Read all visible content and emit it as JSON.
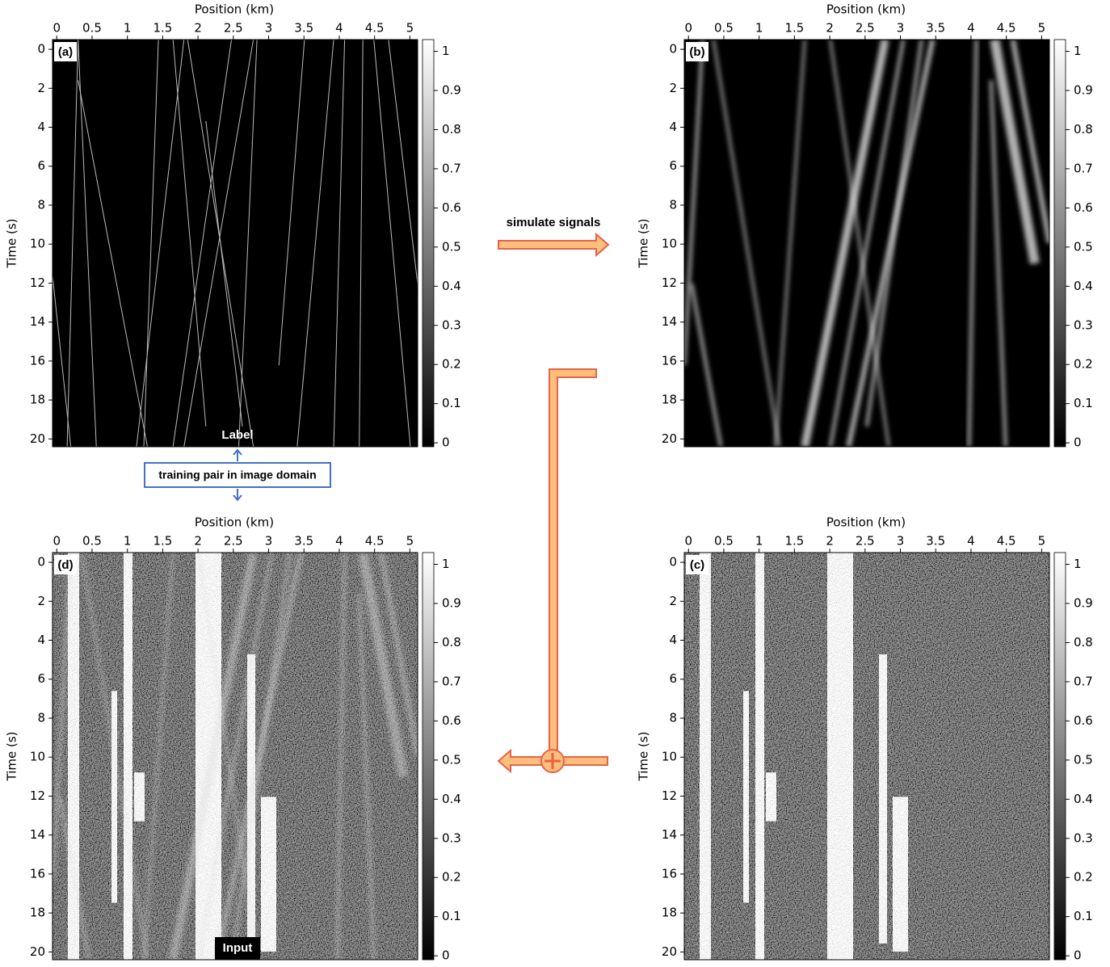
{
  "panels": [
    {
      "label": "(a)",
      "x_label": "Position (km)",
      "y_label": "Time (s)",
      "xlim": [
        -0.06,
        5.11
      ],
      "ylim": [
        -0.5,
        20.4
      ],
      "xticks": [
        0,
        0.5,
        1,
        1.5,
        2,
        2.5,
        3,
        3.5,
        4,
        4.5,
        5
      ],
      "yticks": [
        0,
        2,
        4,
        6,
        8,
        10,
        12,
        14,
        16,
        18,
        20
      ],
      "colorbar": {
        "lim": [
          -0.01,
          1.03
        ],
        "ticks": [
          0,
          0.1,
          0.2,
          0.3,
          0.4,
          0.5,
          0.6,
          0.7,
          0.8,
          0.9,
          1
        ]
      }
    },
    {
      "label": "(b)",
      "x_label": "Position (km)",
      "y_label": "Time (s)",
      "xlim": [
        -0.06,
        5.11
      ],
      "ylim": [
        -0.5,
        20.4
      ],
      "xticks": [
        0,
        0.5,
        1,
        1.5,
        2,
        2.5,
        3,
        3.5,
        4,
        4.5,
        5
      ],
      "yticks": [
        0,
        2,
        4,
        6,
        8,
        10,
        12,
        14,
        16,
        18,
        20
      ],
      "colorbar": {
        "lim": [
          -0.01,
          1.03
        ],
        "ticks": [
          0,
          0.1,
          0.2,
          0.3,
          0.4,
          0.5,
          0.6,
          0.7,
          0.8,
          0.9,
          1
        ]
      }
    },
    {
      "label": "(c)",
      "x_label": "Position (km)",
      "y_label": "Time (s)",
      "xlim": [
        -0.06,
        5.11
      ],
      "ylim": [
        -0.5,
        20.4
      ],
      "xticks": [
        0,
        0.5,
        1,
        1.5,
        2,
        2.5,
        3,
        3.5,
        4,
        4.5,
        5
      ],
      "yticks": [
        0,
        2,
        4,
        6,
        8,
        10,
        12,
        14,
        16,
        18,
        20
      ],
      "colorbar": {
        "lim": [
          -0.01,
          1.03
        ],
        "ticks": [
          0,
          0.1,
          0.2,
          0.3,
          0.4,
          0.5,
          0.6,
          0.7,
          0.8,
          0.9,
          1
        ]
      }
    },
    {
      "label": "(d)",
      "x_label": "Position (km)",
      "y_label": "Time (s)",
      "xlim": [
        -0.06,
        5.11
      ],
      "ylim": [
        -0.5,
        20.4
      ],
      "xticks": [
        0,
        0.5,
        1,
        1.5,
        2,
        2.5,
        3,
        3.5,
        4,
        4.5,
        5
      ],
      "yticks": [
        0,
        2,
        4,
        6,
        8,
        10,
        12,
        14,
        16,
        18,
        20
      ],
      "colorbar": {
        "lim": [
          -0.01,
          1.03
        ],
        "ticks": [
          0,
          0.1,
          0.2,
          0.3,
          0.4,
          0.5,
          0.6,
          0.7,
          0.8,
          0.9,
          1
        ]
      }
    }
  ],
  "annotations": {
    "label": "Label",
    "training_pair": "training pair in image domain",
    "input": "Input",
    "simulate": "simulate signals"
  }
}
